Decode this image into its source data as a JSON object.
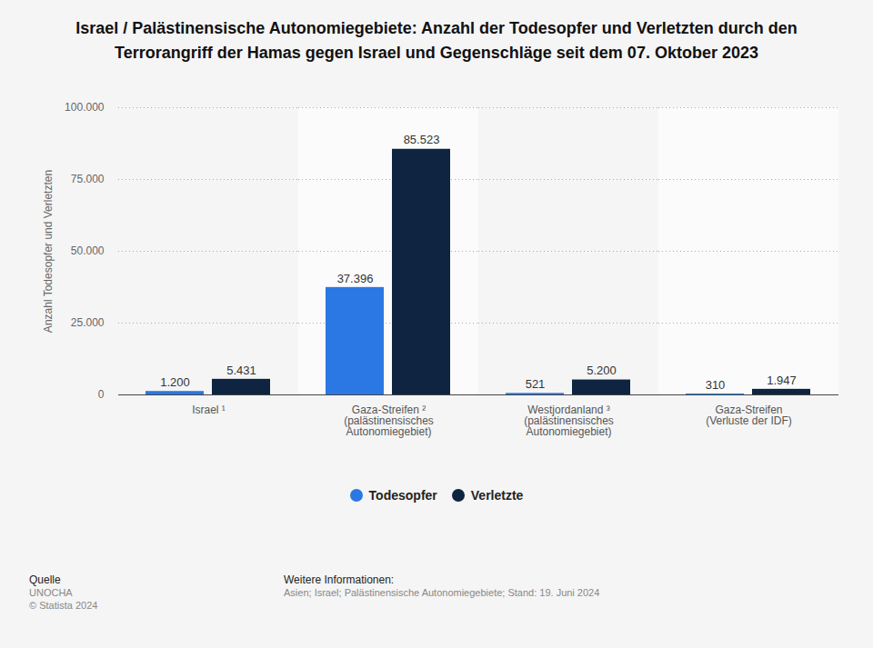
{
  "chart_data": {
    "type": "bar",
    "title": "Israel / Palästinensische Autonomiegebiete: Anzahl der Todesopfer und Verletzten durch den Terrorangriff der Hamas gegen Israel und Gegenschläge seit dem 07. Oktober 2023",
    "y_label": "Anzahl Todesopfer und Verletzten",
    "categories": [
      "Israel ¹",
      "Gaza-Streifen ² (palästinensisches Autonomiegebiet)",
      "Westjordanland ³ (palästinensisches Autonomiegebiet)",
      "Gaza-Streifen  (Verluste der IDF)"
    ],
    "series": [
      {
        "name": "Todesopfer",
        "color": "#2b78e4",
        "values": [
          1200,
          37396,
          521,
          310
        ],
        "value_labels": [
          "1.200",
          "37.396",
          "521",
          "310"
        ]
      },
      {
        "name": "Verletzte",
        "color": "#0e2440",
        "values": [
          5431,
          85523,
          5200,
          1947
        ],
        "value_labels": [
          "5.431",
          "85.523",
          "5.200",
          "1.947"
        ]
      }
    ],
    "ylim": [
      0,
      100000
    ],
    "yticks": [
      0,
      {
        "value": 25000,
        "label": "25.000"
      },
      {
        "value": 50000,
        "label": "50.000"
      },
      {
        "value": 75000,
        "label": "75.000"
      },
      {
        "value": 100000,
        "label": "100.000"
      }
    ],
    "grid": true,
    "data_labels": true,
    "legend": "bottom",
    "source": {
      "heading": "Quelle",
      "lines": [
        "UNOCHA",
        "© Statista 2024"
      ]
    },
    "info": {
      "heading": "Weitere Informationen:",
      "text": "Asien; Israel; Palästinensische Autonomiegebiete; Stand: 19. Juni 2024"
    }
  }
}
